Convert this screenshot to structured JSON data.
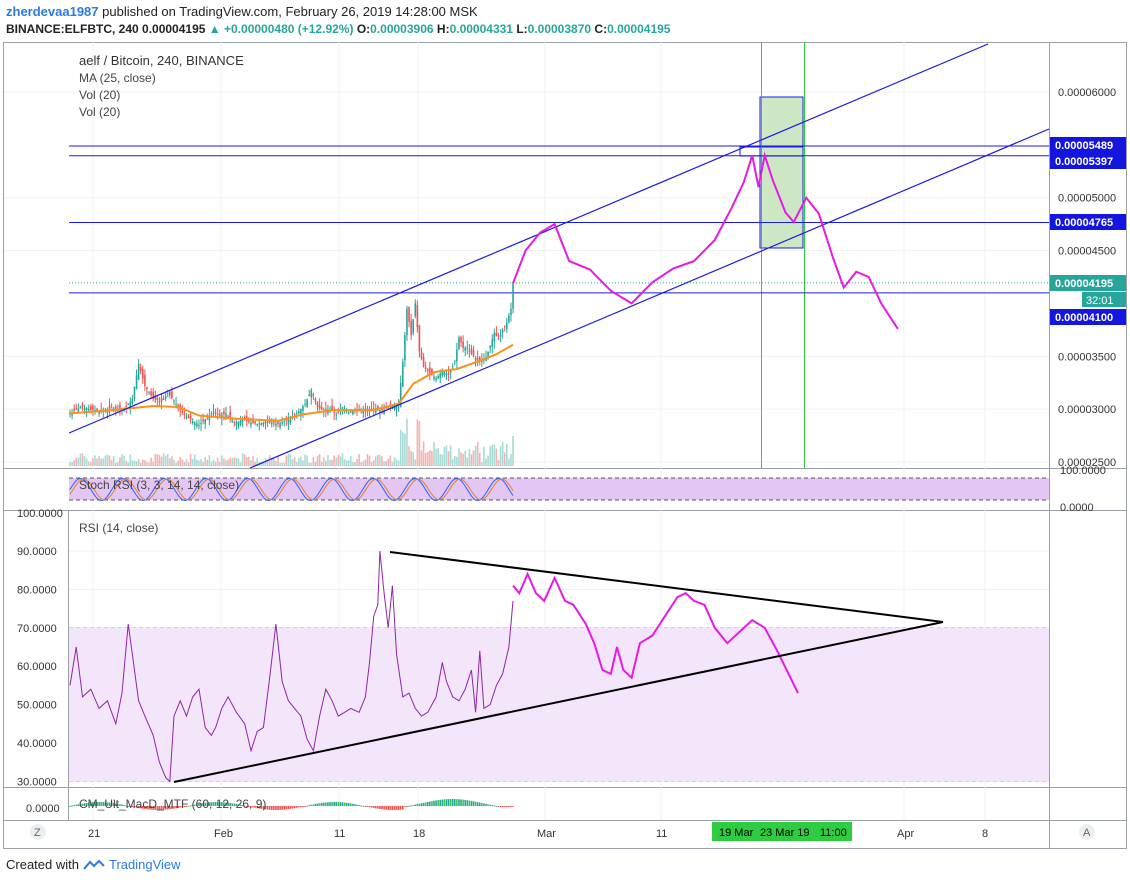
{
  "header": {
    "user": "zherdevaa1987",
    "published": "published on TradingView.com, February 26, 2019 14:28:00 MSK",
    "symbol": "BINANCE:ELFBTC, 240",
    "last": "0.00004195",
    "change_arrow": "▲",
    "change": "+0.00000480 (+12.92%)",
    "o_label": "O:",
    "o": "0.00003906",
    "h_label": "H:",
    "h": "0.00004331",
    "l_label": "L:",
    "l": "0.00003870",
    "c_label": "C:",
    "c": "0.00004195"
  },
  "legend": {
    "title": "aelf / Bitcoin, 240, BINANCE",
    "ma": "MA (25, close)",
    "vol1": "Vol (20)",
    "vol2": "Vol (20)",
    "stoch": "Stoch RSI (3, 3, 14, 14, close)",
    "rsi": "RSI (14, close)",
    "macd": "CM_Ult_MacD_MTF (60, 12, 26, 9)"
  },
  "footer": {
    "created_with": "Created with",
    "brand": "TradingView"
  },
  "colors": {
    "up": "#26a69a",
    "down": "#ef5350",
    "ma": "#f7931a",
    "channel": "#1a1ae6",
    "forecast": "#e619e6",
    "rsi": "#8e24aa",
    "band": "#e8d4f7",
    "green_zone": "#cce6c2",
    "green_line": "#2ecc40",
    "label_blue": "#1515e0",
    "label_green": "#26a69a"
  },
  "chart_data": [
    {
      "type": "candlestick",
      "title": "aelf / Bitcoin, 240, BINANCE",
      "yaxis_ticks": [
        "0.00006000",
        "0.00005000",
        "0.00004500",
        "0.00003500",
        "0.00003000",
        "0.00002500"
      ],
      "ylim": [
        2.45e-05,
        6.46e-05
      ],
      "price_labels": [
        {
          "value": "0.00005489",
          "color": "blue"
        },
        {
          "value": "0.00005397",
          "color": "blue"
        },
        {
          "value": "0.00004765",
          "color": "blue"
        },
        {
          "value": "0.00004195",
          "color": "green"
        },
        {
          "value": "0.00004100",
          "color": "blue"
        }
      ],
      "countdown": "32:01",
      "close_path": [
        [
          0,
          2.96e-05
        ],
        [
          5,
          3.02e-05
        ],
        [
          10,
          3e-05
        ],
        [
          15,
          2.98e-05
        ],
        [
          20,
          3.01e-05
        ],
        [
          24,
          3e-05
        ],
        [
          27,
          3.02e-05
        ],
        [
          30,
          3.1e-05
        ],
        [
          33,
          3.43e-05
        ],
        [
          36,
          3.22e-05
        ],
        [
          40,
          3.1e-05
        ],
        [
          44,
          3.07e-05
        ],
        [
          47,
          3.15e-05
        ],
        [
          50,
          3.08e-05
        ],
        [
          54,
          2.96e-05
        ],
        [
          58,
          2.9e-05
        ],
        [
          62,
          2.85e-05
        ],
        [
          66,
          2.92e-05
        ],
        [
          69,
          2.98e-05
        ],
        [
          72,
          2.94e-05
        ],
        [
          75,
          2.96e-05
        ],
        [
          79,
          2.87e-05
        ],
        [
          83,
          2.9e-05
        ],
        [
          86,
          2.88e-05
        ],
        [
          90,
          2.86e-05
        ],
        [
          95,
          2.88e-05
        ],
        [
          100,
          2.86e-05
        ],
        [
          105,
          2.9e-05
        ],
        [
          110,
          2.98e-05
        ],
        [
          113,
          3.05e-05
        ],
        [
          116,
          3.18e-05
        ],
        [
          119,
          3.02e-05
        ],
        [
          122,
          2.98e-05
        ],
        [
          125,
          3e-05
        ],
        [
          128,
          2.95e-05
        ],
        [
          131,
          3.02e-05
        ],
        [
          134,
          2.97e-05
        ],
        [
          138,
          3e-05
        ],
        [
          142,
          2.98e-05
        ],
        [
          146,
          3e-05
        ],
        [
          150,
          2.99e-05
        ],
        [
          154,
          3.02e-05
        ],
        [
          158,
          3.05e-05
        ],
        [
          160,
          3.45e-05
        ],
        [
          162,
          3.95e-05
        ],
        [
          164,
          3.7e-05
        ],
        [
          166,
          4e-05
        ],
        [
          168,
          3.55e-05
        ],
        [
          170,
          3.4e-05
        ],
        [
          173,
          3.34e-05
        ],
        [
          176,
          3.29e-05
        ],
        [
          179,
          3.36e-05
        ],
        [
          182,
          3.33e-05
        ],
        [
          185,
          3.45e-05
        ],
        [
          187,
          3.68e-05
        ],
        [
          189,
          3.58e-05
        ],
        [
          191,
          3.58e-05
        ],
        [
          194,
          3.5e-05
        ],
        [
          197,
          3.45e-05
        ],
        [
          200,
          3.49e-05
        ],
        [
          202,
          3.6e-05
        ],
        [
          204,
          3.72e-05
        ],
        [
          206,
          3.66e-05
        ],
        [
          208,
          3.75e-05
        ],
        [
          210,
          3.82e-05
        ],
        [
          212,
          3.95e-05
        ],
        [
          213,
          4.19e-05
        ]
      ],
      "ma_path": [
        [
          0,
          2.96e-05
        ],
        [
          20,
          2.99e-05
        ],
        [
          40,
          3.03e-05
        ],
        [
          52,
          3.02e-05
        ],
        [
          62,
          2.94e-05
        ],
        [
          80,
          2.91e-05
        ],
        [
          100,
          2.89e-05
        ],
        [
          112,
          2.95e-05
        ],
        [
          126,
          2.99e-05
        ],
        [
          145,
          2.99e-05
        ],
        [
          158,
          3.05e-05
        ],
        [
          165,
          3.24e-05
        ],
        [
          175,
          3.35e-05
        ],
        [
          186,
          3.38e-05
        ],
        [
          196,
          3.45e-05
        ],
        [
          205,
          3.52e-05
        ],
        [
          213,
          3.61e-05
        ]
      ],
      "forecast_path": [
        [
          213,
          4.19e-05
        ],
        [
          219,
          4.5e-05
        ],
        [
          226,
          4.67e-05
        ],
        [
          233,
          4.75e-05
        ],
        [
          240,
          4.4e-05
        ],
        [
          250,
          4.32e-05
        ],
        [
          260,
          4.12e-05
        ],
        [
          270,
          4e-05
        ],
        [
          280,
          4.2e-05
        ],
        [
          290,
          4.33e-05
        ],
        [
          300,
          4.4e-05
        ],
        [
          310,
          4.6e-05
        ],
        [
          318,
          4.9e-05
        ],
        [
          324,
          5.15e-05
        ],
        [
          328,
          5.4e-05
        ],
        [
          331,
          5.1e-05
        ],
        [
          334,
          5.4e-05
        ],
        [
          338,
          5.16e-05
        ],
        [
          344,
          4.86e-05
        ],
        [
          348,
          4.77e-05
        ],
        [
          354,
          5e-05
        ],
        [
          360,
          4.85e-05
        ],
        [
          367,
          4.42e-05
        ],
        [
          372,
          4.15e-05
        ],
        [
          378,
          4.3e-05
        ],
        [
          384,
          4.25e-05
        ],
        [
          390,
          4e-05
        ],
        [
          398,
          3.76e-05
        ]
      ]
    },
    {
      "type": "line",
      "title": "Stoch RSI (3, 3, 14, 14, close)",
      "yaxis_ticks": [
        "100.0000",
        "0.0000"
      ],
      "ylim": [
        0,
        100
      ]
    },
    {
      "type": "line",
      "title": "RSI (14, close)",
      "yaxis_ticks": [
        "100.0000",
        "90.0000",
        "80.0000",
        "70.0000",
        "60.0000",
        "50.0000",
        "40.0000",
        "30.0000"
      ],
      "ylim": [
        28,
        100
      ],
      "rsi_path": [
        [
          0,
          55
        ],
        [
          3,
          65
        ],
        [
          6,
          52
        ],
        [
          10,
          54
        ],
        [
          14,
          49
        ],
        [
          18,
          51
        ],
        [
          22,
          45
        ],
        [
          25,
          53
        ],
        [
          28,
          71
        ],
        [
          30,
          63
        ],
        [
          33,
          51
        ],
        [
          36,
          47
        ],
        [
          40,
          42
        ],
        [
          43,
          35
        ],
        [
          46,
          31
        ],
        [
          48,
          30
        ],
        [
          50,
          47
        ],
        [
          53,
          51
        ],
        [
          56,
          47
        ],
        [
          59,
          52
        ],
        [
          62,
          54
        ],
        [
          65,
          44
        ],
        [
          68,
          42
        ],
        [
          70,
          44
        ],
        [
          73,
          49
        ],
        [
          76,
          52
        ],
        [
          80,
          48
        ],
        [
          84,
          45
        ],
        [
          87,
          38
        ],
        [
          90,
          43
        ],
        [
          93,
          44
        ],
        [
          96,
          57
        ],
        [
          99,
          71
        ],
        [
          102,
          56
        ],
        [
          105,
          51
        ],
        [
          108,
          49
        ],
        [
          111,
          47
        ],
        [
          114,
          41
        ],
        [
          117,
          38
        ],
        [
          120,
          47
        ],
        [
          123,
          54
        ],
        [
          126,
          51
        ],
        [
          129,
          47
        ],
        [
          132,
          48
        ],
        [
          135,
          49
        ],
        [
          139,
          48
        ],
        [
          142,
          52
        ],
        [
          144,
          61
        ],
        [
          146,
          73
        ],
        [
          148,
          76
        ],
        [
          149,
          90
        ],
        [
          151,
          79
        ],
        [
          153,
          70
        ],
        [
          155,
          81
        ],
        [
          157,
          63
        ],
        [
          160,
          52
        ],
        [
          163,
          53
        ],
        [
          166,
          49
        ],
        [
          169,
          47
        ],
        [
          172,
          48
        ],
        [
          176,
          52
        ],
        [
          179,
          61
        ],
        [
          181,
          56
        ],
        [
          184,
          52
        ],
        [
          187,
          51
        ],
        [
          190,
          54
        ],
        [
          193,
          59
        ],
        [
          195,
          48
        ],
        [
          197,
          64
        ],
        [
          199,
          49
        ],
        [
          202,
          50
        ],
        [
          205,
          55
        ],
        [
          208,
          58
        ],
        [
          211,
          65
        ],
        [
          213,
          77
        ]
      ],
      "rsi_forecast": [
        [
          213,
          81
        ],
        [
          216,
          79
        ],
        [
          220,
          84
        ],
        [
          224,
          79
        ],
        [
          228,
          77
        ],
        [
          233,
          83
        ],
        [
          238,
          77
        ],
        [
          242,
          76
        ],
        [
          248,
          71
        ],
        [
          252,
          66
        ],
        [
          256,
          59
        ],
        [
          260,
          58
        ],
        [
          263,
          65
        ],
        [
          266,
          59
        ],
        [
          270,
          57
        ],
        [
          274,
          66
        ],
        [
          280,
          68
        ],
        [
          286,
          73
        ],
        [
          292,
          78
        ],
        [
          296,
          79
        ],
        [
          300,
          77
        ],
        [
          305,
          76
        ],
        [
          310,
          70
        ],
        [
          316,
          66
        ],
        [
          322,
          69
        ],
        [
          328,
          72
        ],
        [
          334,
          70
        ],
        [
          340,
          64
        ],
        [
          350,
          53
        ]
      ],
      "rsi_band": [
        30,
        70
      ]
    },
    {
      "type": "bar",
      "title": "CM_Ult_MacD_MTF (60, 12, 26, 9)",
      "yaxis_ticks": [
        "0.0000"
      ]
    }
  ],
  "xaxis": {
    "ticks": [
      "21",
      "Feb",
      "11",
      "18",
      "Mar",
      "11",
      "Apr",
      "8"
    ],
    "highlight": [
      "19 Mar",
      "23 Mar 19",
      "11:00"
    ]
  },
  "buttons": {
    "z": "Z",
    "a": "A"
  }
}
